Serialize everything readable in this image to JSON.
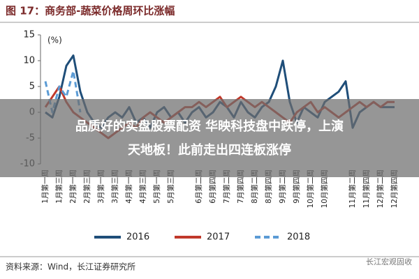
{
  "chart_data": {
    "type": "line",
    "title": "图 17：商务部-蔬菜价格周环比涨幅",
    "y_unit_label": "(%)",
    "source": "资料来源：Wind，长江证券研究所",
    "watermark": "长江宏观固收",
    "overlay_text": [
      "品质好的实盘股票配资 华映科技盘中跌停，上演",
      "天地板！此前走出四连板涨停"
    ],
    "categories": [
      "1月第一周",
      null,
      "1月第三周",
      null,
      "2月第一周",
      null,
      "2月第三周",
      null,
      "3月第一周",
      null,
      "3月第三周",
      null,
      "4月第一周",
      null,
      "4月第三周",
      null,
      "5月第一周",
      null,
      "5月第三周",
      null,
      null,
      null,
      "6月第二周",
      null,
      "6月第四周",
      null,
      "7月第二周",
      null,
      "7月第四周",
      null,
      "8月第二周",
      null,
      "8月第四周",
      null,
      "9月第二周",
      null,
      "9月第四周",
      null,
      "10月第二周",
      null,
      "10月第四周",
      null,
      null,
      null,
      "11月第二周",
      null,
      "11月第四周",
      null,
      "12月第二周",
      null,
      "12月第四周"
    ],
    "series": [
      {
        "name": "2016",
        "color": "#1f4e79",
        "dashed": false,
        "values": [
          0,
          -1,
          3,
          9,
          11,
          4,
          0,
          -2,
          -3,
          -1,
          0,
          -1,
          1,
          -2,
          -1,
          -3,
          0,
          1,
          -1,
          0,
          -2,
          0,
          1,
          -1,
          0,
          2,
          1,
          -1,
          2,
          0,
          -1,
          1,
          2,
          5,
          10,
          2,
          -2,
          1,
          0,
          -1,
          2,
          3,
          4,
          6,
          -3,
          0,
          1,
          2,
          1,
          1,
          1
        ]
      },
      {
        "name": "2017",
        "color": "#c0392b",
        "dashed": false,
        "values": [
          1,
          3,
          5,
          2,
          0,
          -1,
          -2,
          -3,
          -4,
          -5,
          -4,
          -3,
          -2,
          -3,
          -1,
          0,
          -1,
          -2,
          -1,
          0,
          1,
          1,
          2,
          1,
          2,
          3,
          1,
          2,
          3,
          2,
          1,
          2,
          1,
          0,
          -1,
          -2,
          0,
          1,
          2,
          0,
          1,
          0,
          -1,
          0,
          1,
          2,
          1,
          2,
          1,
          2,
          2
        ]
      },
      {
        "name": "2018",
        "color": "#5b9bd5",
        "dashed": true,
        "values": [
          6,
          0,
          5,
          3,
          8,
          0,
          null,
          null,
          null,
          null,
          null,
          null,
          null,
          null,
          null,
          null,
          null,
          null,
          null,
          null,
          null,
          null,
          null,
          null,
          null,
          null,
          null,
          null,
          null,
          null,
          null,
          null,
          null,
          null,
          null,
          null,
          null,
          null,
          null,
          null,
          null,
          null,
          null,
          null,
          null,
          null,
          null,
          null,
          null,
          null,
          null
        ]
      }
    ],
    "ylim": [
      -10,
      15
    ],
    "yticks": [
      -10,
      -5,
      0,
      5,
      10,
      15
    ],
    "grid": false,
    "legend": "bottom"
  }
}
